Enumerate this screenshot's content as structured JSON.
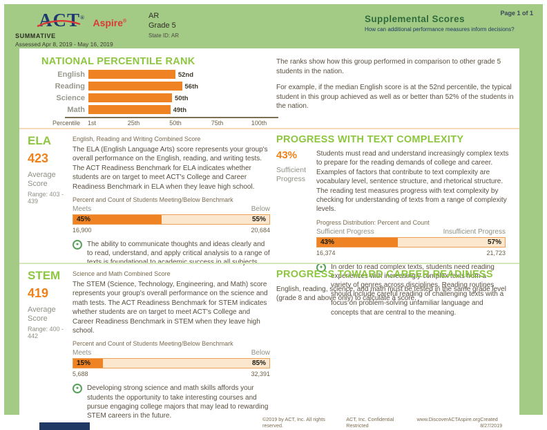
{
  "header": {
    "logo_act": "ACT",
    "logo_aspire": "Aspire",
    "reg": "®",
    "report_type": "SUMMATIVE",
    "assessed": "Assessed Apr 8, 2019 - May 16, 2019",
    "org": "AR",
    "grade": "Grade 5",
    "state_id": "State ID: AR",
    "title": "Supplemental Scores",
    "subtitle": "How can additional performance measures inform decisions?",
    "page": "Page 1 of 1"
  },
  "npr": {
    "title": "NATIONAL PERCENTILE RANK",
    "description_1": "The ranks show how this group performed in comparison to other grade 5 students in the nation.",
    "description_2": "For example, if the median English score is at the 52nd percentile, the typical student in this group achieved as well as or better than 52% of the students in the nation.",
    "axis_label": "Percentile"
  },
  "chart_data": [
    {
      "type": "bar",
      "orientation": "horizontal",
      "title": "NATIONAL PERCENTILE RANK",
      "categories": [
        "English",
        "Reading",
        "Science",
        "Math"
      ],
      "values": [
        52,
        56,
        50,
        49
      ],
      "value_labels": [
        "52nd",
        "56th",
        "50th",
        "49th"
      ],
      "xlabel": "Percentile",
      "xticks": [
        "1st",
        "25th",
        "50th",
        "75th",
        "100th"
      ],
      "xlim": [
        1,
        100
      ],
      "bar_color": "#ef8222",
      "grid": false,
      "legend": false
    },
    {
      "type": "stacked-bar",
      "title": "ELA — Percent and Count of Students Meeting/Below Benchmark",
      "segments": [
        {
          "label": "Meets",
          "value": 45,
          "count": 16900
        },
        {
          "label": "Below",
          "value": 55,
          "count": 20684
        }
      ]
    },
    {
      "type": "stacked-bar",
      "title": "Progress Distribution: Percent and Count",
      "segments": [
        {
          "label": "Sufficient Progress",
          "value": 43,
          "count": 16374
        },
        {
          "label": "Insufficient Progress",
          "value": 57,
          "count": 21723
        }
      ]
    },
    {
      "type": "stacked-bar",
      "title": "STEM — Percent and Count of Students Meeting/Below Benchmark",
      "segments": [
        {
          "label": "Meets",
          "value": 15,
          "count": 5688
        },
        {
          "label": "Below",
          "value": 85,
          "count": 32391
        }
      ]
    }
  ],
  "ela": {
    "name": "ELA",
    "score": "423",
    "score_label": "Average Score",
    "range": "Range: 403 - 439",
    "combined_label": "English, Reading and Writing Combined Score",
    "description": "The ELA (English Language Arts) score represents your group's overall performance on the English, reading, and writing tests. The ACT Readiness Benchmark for ELA indicates whether students are on target to meet ACT's College and Career Readiness Benchmark in ELA when they leave high school.",
    "bar_title": "Percent and Count of Students Meeting/Below Benchmark",
    "meets_label": "Meets",
    "below_label": "Below",
    "meets_pct": "45%",
    "below_pct": "55%",
    "meets_value": 45,
    "meets_count": "16,900",
    "below_count": "20,684",
    "note": "The ability to communicate thoughts and ideas clearly and to read, understand, and apply critical analysis to a range of texts is foundational to academic success in all subjects."
  },
  "text_complexity": {
    "title": "PROGRESS WITH TEXT COMPLEXITY",
    "pct": "43%",
    "pct_label": "Sufficient Progress",
    "description": "Students must read and understand increasingly complex texts to prepare for the reading demands of college and career. Examples of factors that contribute to text complexity are vocabulary level, sentence structure, and rhetorical structure. The reading test measures progress with text complexity by checking for understanding of texts from a range of complexity levels.",
    "bar_title": "Progress Distribution: Percent and Count",
    "left_label": "Sufficient Progress",
    "right_label": "Insufficient Progress",
    "left_pct": "43%",
    "right_pct": "57%",
    "left_value": 43,
    "left_count": "16,374",
    "right_count": "21,723",
    "note": "In order to read complex texts, students need reading experiences with increasingly complex texts from a variety of genres across disciplines. Reading routines should include careful reading of challenging texts with a focus on problem-solving unfamiliar language and concepts that are central to the meaning."
  },
  "stem": {
    "name": "STEM",
    "score": "419",
    "score_label": "Average Score",
    "range": "Range: 400 - 442",
    "combined_label": "Science and Math Combined Score",
    "description": "The STEM (Science, Technology, Engineering, and Math) score represents your group's overall performance on the science and math tests. The ACT Readiness Benchmark for STEM indicates whether students are on target to meet ACT's College and Career Readiness Benchmark in STEM when they leave high school.",
    "bar_title": "Percent and Count of Students Meeting/Below Benchmark",
    "meets_label": "Meets",
    "below_label": "Below",
    "meets_pct": "15%",
    "below_pct": "85%",
    "meets_value": 15,
    "meets_count": "5,688",
    "below_count": "32,391",
    "note": "Developing strong science and math skills affords your students the opportunity to take interesting courses and pursue engaging college majors that may lead to rewarding STEM careers in the future."
  },
  "career": {
    "title": "PROGRESS TOWARD CAREER READINESS",
    "description": "English, reading, science, and math must be tested in the same grade level (grade 8 and above only) to calculate a score."
  },
  "footer": {
    "copyright": "©2019 by ACT, Inc. All rights reserved.",
    "confidential": "ACT, Inc. Confidential Restricted",
    "url": "www.DiscoverACTAspire.org",
    "created": "Created 8/27/2019"
  },
  "ui": {
    "note_icon": "✦"
  },
  "colors": {
    "frame_green": "#a3cb85",
    "heading_lime": "#8dc63f",
    "accent_orange": "#f08119",
    "bar_peach": "#fbe7cd",
    "navy": "#1f3864",
    "logo_red": "#d93a35",
    "header_green": "#2f6b3c"
  }
}
